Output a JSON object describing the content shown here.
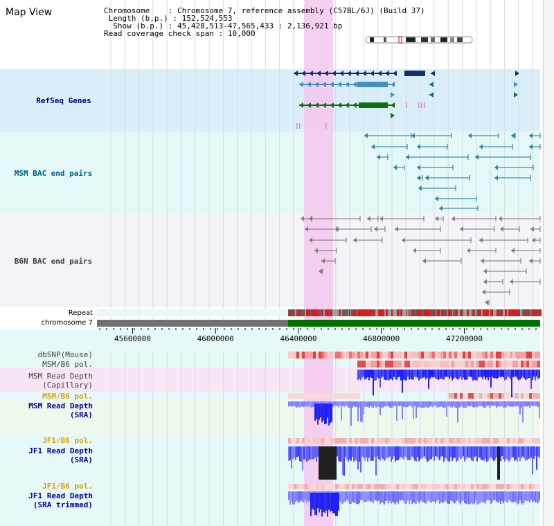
{
  "view_title": "Map View",
  "info": {
    "chromosome_key": "Chromosome",
    "chromosome_value": "Chromosome 7, reference assembly (C57BL/6J) (Build 37)",
    "length_key": "Length (b.p.)",
    "length_value": "152,524,553",
    "show_key": "Show (b.p.)",
    "show_value": "45,428,513-47,565,433 : 2,136,921 bp",
    "coverage_key": "Read coverage check span",
    "coverage_value": "10,000"
  },
  "tracks": [
    {
      "id": "refseq",
      "label": "RefSeq Genes",
      "color": "#000080"
    },
    {
      "id": "msm_bac",
      "label": "MSM BAC end pairs",
      "color": "#006080"
    },
    {
      "id": "b6n_bac",
      "label": "B6N BAC end pairs",
      "color": "#404040"
    },
    {
      "id": "repeat",
      "label": "Repeat",
      "color": "#000000"
    },
    {
      "id": "chromosome",
      "label": "chromosome 7",
      "color": "#000000"
    },
    {
      "id": "dbsnp",
      "label": "dbSNP(Mouse)",
      "color": "#404040"
    },
    {
      "id": "msm_pol_cap",
      "label": "MSM/B6 pol.",
      "color": "#404040"
    },
    {
      "id": "msm_depth_cap",
      "label": "MSM Read Depth\n(Capillary)",
      "color": "#404040"
    },
    {
      "id": "msm_pol_sra",
      "label": "MSM/B6 pol.",
      "color": "#e0a000"
    },
    {
      "id": "msm_depth_sra",
      "label": "MSM Read Depth\n(SRA)",
      "color": "#0000a0"
    },
    {
      "id": "jf1_pol",
      "label": "JF1/B6 pol.",
      "color": "#e0a000"
    },
    {
      "id": "jf1_depth",
      "label": "JF1 Read Depth\n(SRA)",
      "color": "#0000a0"
    },
    {
      "id": "jf1_pol2",
      "label": "JF1/B6 pol.",
      "color": "#e0a000"
    },
    {
      "id": "jf1_depth_trim",
      "label": "JF1 Read Depth\n(SRA trimmed)",
      "color": "#0000a0"
    }
  ],
  "axis": {
    "ticks": [
      {
        "bp": 45600000,
        "label": "45600000"
      },
      {
        "bp": 46000000,
        "label": "46000000"
      },
      {
        "bp": 46400000,
        "label": "46400000"
      },
      {
        "bp": 46800000,
        "label": "46800000"
      },
      {
        "bp": 47200000,
        "label": "47200000"
      }
    ]
  },
  "colors": {
    "highlight": "#f4c8f0",
    "refseq_bg": "#d8eef8",
    "msm_bg": "#e4f8f8",
    "b6n_bg": "#f4f4f8",
    "chrom_gray": "#707070",
    "chrom_green": "#007000",
    "depth_blue": "#2020ff"
  }
}
